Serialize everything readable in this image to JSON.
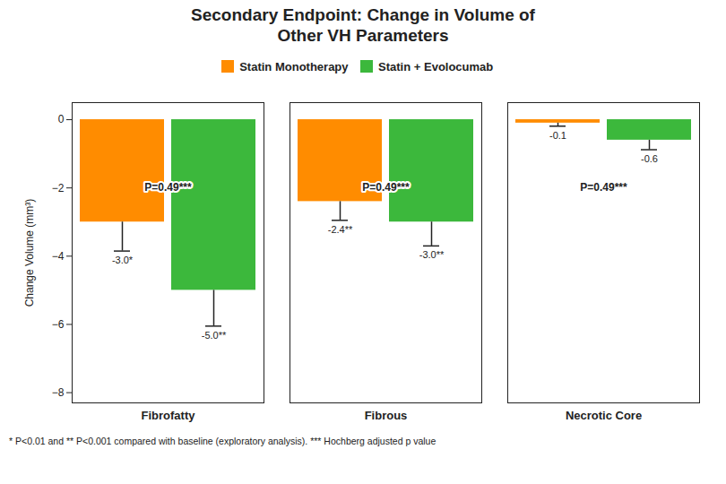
{
  "chart_data": {
    "type": "bar",
    "title": "Secondary Endpoint: Change in Volume of\nOther VH Parameters",
    "categories": [
      "Fibrofatty",
      "Fibrous",
      "Necrotic Core"
    ],
    "series": [
      {
        "name": "Statin Monotherapy",
        "color": "#FF8C00",
        "values": [
          -3.0,
          -2.4,
          -0.1
        ],
        "errors_below": [
          0.85,
          0.55,
          0.09
        ],
        "value_labels": [
          "-3.0*",
          "-2.4**",
          "-0.1"
        ]
      },
      {
        "name": "Statin + Evolocumab",
        "color": "#3CB83C",
        "values": [
          -5.0,
          -3.0,
          -0.6
        ],
        "errors_below": [
          1.05,
          0.7,
          0.28
        ],
        "value_labels": [
          "-5.0**",
          "-3.0**",
          "-0.6"
        ]
      }
    ],
    "ylabel": "Change Volume (mm³)",
    "ylim": [
      -8.3,
      0.5
    ],
    "yticks": [
      0,
      -2,
      -4,
      -6,
      -8
    ],
    "grid": false,
    "legend": "top",
    "data_labels": true,
    "annotations": [
      {
        "category": "Fibrofatty",
        "text": "P=0.49***"
      },
      {
        "category": "Fibrous",
        "text": "P=0.49***"
      },
      {
        "category": "Necrotic Core",
        "text": "P=0.49***"
      }
    ],
    "footnote": "* P<0.01 and ** P<0.001 compared with baseline (exploratory analysis). *** Hochberg adjusted p value"
  }
}
